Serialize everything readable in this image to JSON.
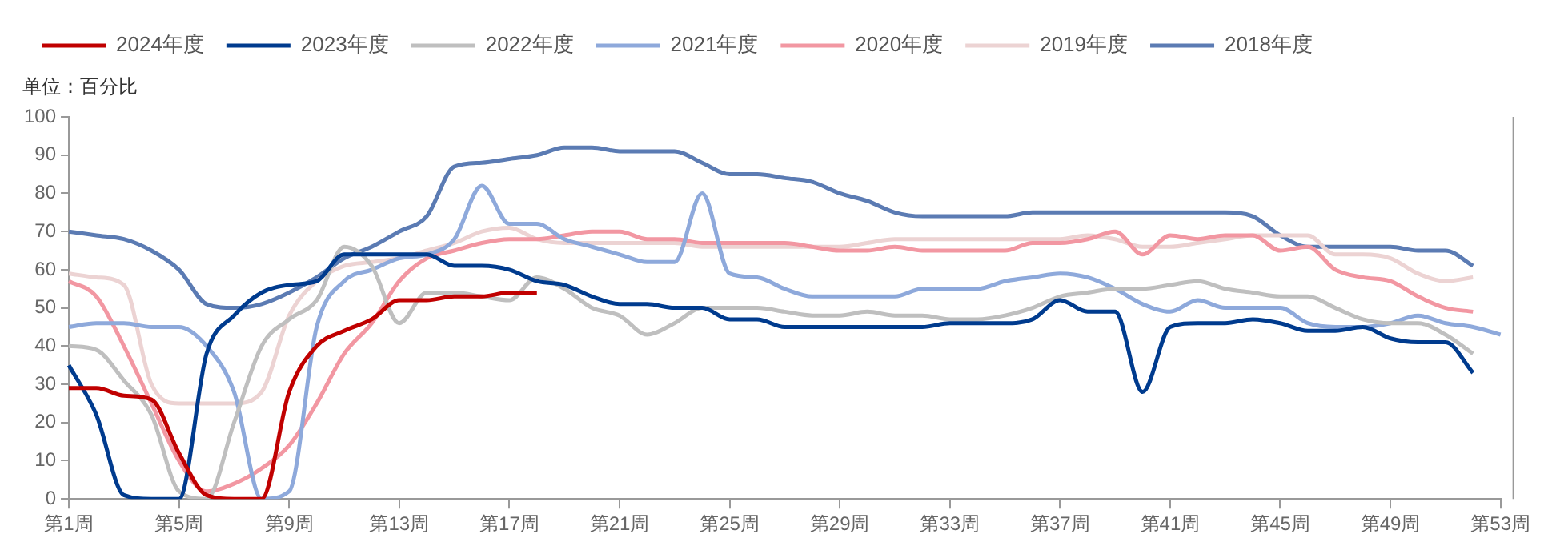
{
  "chart_data": {
    "type": "line",
    "categories": [
      "第1周",
      null,
      null,
      null,
      "第5周",
      null,
      null,
      null,
      "第9周",
      null,
      null,
      null,
      "第13周",
      null,
      null,
      null,
      "第17周",
      null,
      null,
      null,
      "第21周",
      null,
      null,
      null,
      "第25周",
      null,
      null,
      null,
      "第29周",
      null,
      null,
      null,
      "第33周",
      null,
      null,
      null,
      "第37周",
      null,
      null,
      null,
      "第41周",
      null,
      null,
      null,
      "第45周",
      null,
      null,
      null,
      "第49周",
      null,
      null,
      null,
      "第53周"
    ],
    "series": [
      {
        "name": "2024年度",
        "color": "#c00000",
        "values": [
          29,
          29,
          27,
          26,
          12,
          1,
          0,
          0,
          28,
          40,
          44,
          47,
          52,
          52,
          53,
          53,
          54,
          54,
          null,
          null,
          null,
          null,
          null,
          null,
          null,
          null,
          null,
          null,
          null,
          null,
          null,
          null,
          null,
          null,
          null,
          null,
          null,
          null,
          null,
          null,
          null,
          null,
          null,
          null,
          null,
          null,
          null,
          null,
          null,
          null,
          null,
          null,
          null
        ]
      },
      {
        "name": "2023年度",
        "color": "#003b8e",
        "values": [
          35,
          22,
          1,
          0,
          0,
          38,
          48,
          54,
          56,
          57,
          64,
          64,
          64,
          64,
          61,
          61,
          60,
          57,
          56,
          53,
          51,
          51,
          50,
          50,
          47,
          47,
          45,
          45,
          45,
          45,
          45,
          45,
          46,
          46,
          46,
          47,
          52,
          49,
          49,
          28,
          45,
          46,
          46,
          47,
          46,
          44,
          44,
          45,
          42,
          41,
          41,
          33,
          null
        ]
      },
      {
        "name": "2022年度",
        "color": "#bfbfbf",
        "values": [
          40,
          39,
          31,
          22,
          2,
          0,
          20,
          40,
          47,
          52,
          66,
          61,
          46,
          54,
          54,
          53,
          52,
          58,
          55,
          50,
          48,
          43,
          46,
          50,
          50,
          50,
          49,
          48,
          48,
          49,
          48,
          48,
          47,
          47,
          48,
          50,
          53,
          54,
          55,
          55,
          56,
          57,
          55,
          54,
          53,
          53,
          50,
          47,
          46,
          46,
          43,
          38,
          null
        ]
      },
      {
        "name": "2021年度",
        "color": "#8ea9db",
        "values": [
          45,
          46,
          46,
          45,
          45,
          40,
          28,
          0,
          2,
          45,
          57,
          60,
          63,
          64,
          68,
          82,
          72,
          72,
          68,
          66,
          64,
          62,
          62,
          80,
          59,
          58,
          55,
          53,
          53,
          53,
          53,
          55,
          55,
          55,
          57,
          58,
          59,
          58,
          55,
          51,
          49,
          52,
          50,
          50,
          50,
          46,
          45,
          45,
          46,
          48,
          46,
          45,
          43
        ]
      },
      {
        "name": "2020年度",
        "color": "#f297a2",
        "values": [
          57,
          53,
          40,
          25,
          10,
          2,
          4,
          8,
          14,
          25,
          38,
          46,
          57,
          63,
          65,
          67,
          68,
          68,
          69,
          70,
          70,
          68,
          68,
          67,
          67,
          67,
          67,
          66,
          65,
          65,
          66,
          65,
          65,
          65,
          65,
          67,
          67,
          68,
          70,
          64,
          69,
          68,
          69,
          69,
          65,
          66,
          60,
          58,
          57,
          53,
          50,
          49,
          null
        ]
      },
      {
        "name": "2019年度",
        "color": "#ecd3d3",
        "values": [
          59,
          58,
          56,
          30,
          25,
          25,
          25,
          28,
          48,
          57,
          61,
          62,
          63,
          65,
          67,
          70,
          71,
          68,
          67,
          67,
          67,
          67,
          67,
          66,
          66,
          66,
          66,
          66,
          66,
          67,
          68,
          68,
          68,
          68,
          68,
          68,
          68,
          69,
          68,
          66,
          66,
          67,
          68,
          69,
          69,
          69,
          64,
          64,
          63,
          59,
          57,
          58,
          null
        ]
      },
      {
        "name": "2018年度",
        "color": "#5b7bb3",
        "values": [
          70,
          69,
          68,
          65,
          60,
          51,
          50,
          51,
          54,
          58,
          63,
          66,
          70,
          74,
          87,
          88,
          89,
          90,
          92,
          92,
          91,
          91,
          91,
          88,
          85,
          85,
          84,
          83,
          80,
          78,
          75,
          74,
          74,
          74,
          74,
          75,
          75,
          75,
          75,
          75,
          75,
          75,
          75,
          74,
          69,
          66,
          66,
          66,
          66,
          65,
          65,
          61,
          null
        ]
      }
    ],
    "ylim": [
      0,
      100
    ],
    "yticks": [
      0,
      10,
      20,
      30,
      40,
      50,
      60,
      70,
      80,
      90,
      100
    ],
    "annotations": [
      "单位：百分比"
    ],
    "legend": "top",
    "grid": false,
    "marker": "none",
    "line_style": "solid"
  }
}
